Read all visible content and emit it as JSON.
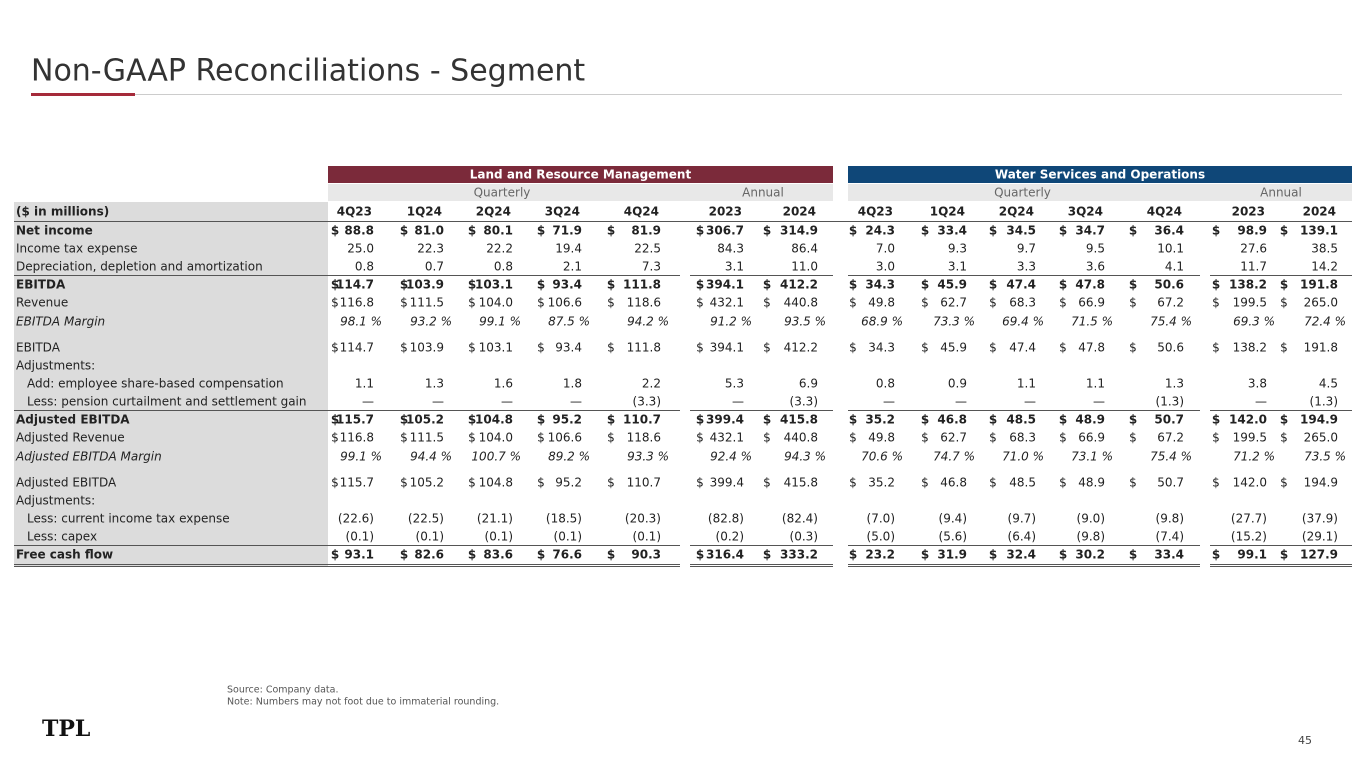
{
  "title": "Non-GAAP Reconciliations - Segment",
  "currency_symbol": "$",
  "table": {
    "groups": [
      "Land and Resource Management",
      "Water Services and Operations"
    ],
    "group_colors": [
      "#7b2a3a",
      "#0f4778"
    ],
    "periods": [
      "Quarterly",
      "Annual"
    ],
    "unit_label": "($ in millions)",
    "columns": [
      "4Q23",
      "1Q24",
      "2Q24",
      "3Q24",
      "4Q24",
      "2023",
      "2024"
    ],
    "rows": [
      {
        "label": "Net income",
        "style": "bold",
        "dollar": true,
        "values": [
          "88.8",
          "81.0",
          "80.1",
          "71.9",
          "81.9",
          "306.7",
          "314.9",
          "24.3",
          "33.4",
          "34.5",
          "34.7",
          "36.4",
          "98.9",
          "139.1"
        ]
      },
      {
        "label": "Income tax expense",
        "style": "normal",
        "dollar": false,
        "values": [
          "25.0",
          "22.3",
          "22.2",
          "19.4",
          "22.5",
          "84.3",
          "86.4",
          "7.0",
          "9.3",
          "9.7",
          "9.5",
          "10.1",
          "27.6",
          "38.5"
        ]
      },
      {
        "label": "Depreciation, depletion and amortization",
        "style": "normal",
        "dollar": false,
        "values": [
          "0.8",
          "0.7",
          "0.8",
          "2.1",
          "7.3",
          "3.1",
          "11.0",
          "3.0",
          "3.1",
          "3.3",
          "3.6",
          "4.1",
          "11.7",
          "14.2"
        ]
      },
      {
        "label": "EBITDA",
        "style": "bold",
        "dollar": true,
        "values": [
          "114.7",
          "103.9",
          "103.1",
          "93.4",
          "111.8",
          "394.1",
          "412.2",
          "34.3",
          "45.9",
          "47.4",
          "47.8",
          "50.6",
          "138.2",
          "191.8"
        ]
      },
      {
        "label": "Revenue",
        "style": "normal",
        "dollar": true,
        "values": [
          "116.8",
          "111.5",
          "104.0",
          "106.6",
          "118.6",
          "432.1",
          "440.8",
          "49.8",
          "62.7",
          "68.3",
          "66.9",
          "67.2",
          "199.5",
          "265.0"
        ]
      },
      {
        "label": "EBITDA Margin",
        "style": "italic",
        "dollar": false,
        "values": [
          "98.1 %",
          "93.2 %",
          "99.1 %",
          "87.5 %",
          "94.2 %",
          "91.2 %",
          "93.5 %",
          "68.9 %",
          "73.3 %",
          "69.4 %",
          "71.5 %",
          "75.4 %",
          "69.3 %",
          "72.4 %"
        ]
      },
      {
        "label": "EBITDA",
        "style": "normal",
        "dollar": true,
        "values": [
          "114.7",
          "103.9",
          "103.1",
          "93.4",
          "111.8",
          "394.1",
          "412.2",
          "34.3",
          "45.9",
          "47.4",
          "47.8",
          "50.6",
          "138.2",
          "191.8"
        ]
      },
      {
        "label": "Adjustments:",
        "style": "normal",
        "dollar": false,
        "values": []
      },
      {
        "label": "Add: employee share-based compensation",
        "style": "indent",
        "dollar": false,
        "values": [
          "1.1",
          "1.3",
          "1.6",
          "1.8",
          "2.2",
          "5.3",
          "6.9",
          "0.8",
          "0.9",
          "1.1",
          "1.1",
          "1.3",
          "3.8",
          "4.5"
        ]
      },
      {
        "label": "Less: pension curtailment and settlement gain",
        "style": "indent",
        "dollar": false,
        "values": [
          "—",
          "—",
          "—",
          "—",
          "(3.3)",
          "—",
          "(3.3)",
          "—",
          "—",
          "—",
          "—",
          "(1.3)",
          "—",
          "(1.3)"
        ]
      },
      {
        "label": "Adjusted EBITDA",
        "style": "bold",
        "dollar": true,
        "values": [
          "115.7",
          "105.2",
          "104.8",
          "95.2",
          "110.7",
          "399.4",
          "415.8",
          "35.2",
          "46.8",
          "48.5",
          "48.9",
          "50.7",
          "142.0",
          "194.9"
        ]
      },
      {
        "label": "Adjusted Revenue",
        "style": "normal",
        "dollar": true,
        "values": [
          "116.8",
          "111.5",
          "104.0",
          "106.6",
          "118.6",
          "432.1",
          "440.8",
          "49.8",
          "62.7",
          "68.3",
          "66.9",
          "67.2",
          "199.5",
          "265.0"
        ]
      },
      {
        "label": "Adjusted EBITDA Margin",
        "style": "italic",
        "dollar": false,
        "values": [
          "99.1 %",
          "94.4 %",
          "100.7 %",
          "89.2 %",
          "93.3 %",
          "92.4 %",
          "94.3 %",
          "70.6 %",
          "74.7 %",
          "71.0 %",
          "73.1 %",
          "75.4 %",
          "71.2 %",
          "73.5 %"
        ]
      },
      {
        "label": "Adjusted EBITDA",
        "style": "normal",
        "dollar": true,
        "values": [
          "115.7",
          "105.2",
          "104.8",
          "95.2",
          "110.7",
          "399.4",
          "415.8",
          "35.2",
          "46.8",
          "48.5",
          "48.9",
          "50.7",
          "142.0",
          "194.9"
        ]
      },
      {
        "label": "Adjustments:",
        "style": "normal",
        "dollar": false,
        "values": []
      },
      {
        "label": "Less: current income tax expense",
        "style": "indent",
        "dollar": false,
        "values": [
          "(22.6)",
          "(22.5)",
          "(21.1)",
          "(18.5)",
          "(20.3)",
          "(82.8)",
          "(82.4)",
          "(7.0)",
          "(9.4)",
          "(9.7)",
          "(9.0)",
          "(9.8)",
          "(27.7)",
          "(37.9)"
        ]
      },
      {
        "label": "Less: capex",
        "style": "indent",
        "dollar": false,
        "values": [
          "(0.1)",
          "(0.1)",
          "(0.1)",
          "(0.1)",
          "(0.1)",
          "(0.2)",
          "(0.3)",
          "(5.0)",
          "(5.6)",
          "(6.4)",
          "(9.8)",
          "(7.4)",
          "(15.2)",
          "(29.1)"
        ]
      },
      {
        "label": "Free cash flow",
        "style": "total",
        "dollar": true,
        "values": [
          "93.1",
          "82.6",
          "83.6",
          "76.6",
          "90.3",
          "316.4",
          "333.2",
          "23.2",
          "31.9",
          "32.4",
          "30.2",
          "33.4",
          "99.1",
          "127.9"
        ]
      }
    ]
  },
  "footnotes": [
    "Source: Company data.",
    "Note: Numbers may not foot due to immaterial rounding."
  ],
  "logo": "TPL",
  "page_number": "45"
}
